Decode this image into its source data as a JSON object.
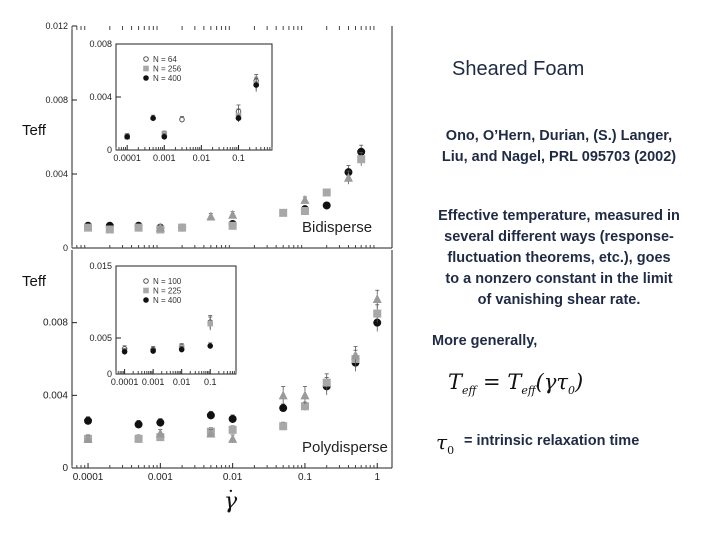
{
  "slide": {
    "title": "Sheared Foam",
    "citation_line1": "Ono, O’Hern, Durian, (S.) Langer,",
    "citation_line2": "Liu, and Nagel, PRL 095703 (2002)",
    "description_lines": [
      "Effective temperature, measured in",
      "several different ways (response-",
      "fluctuation theorems, etc.),  goes",
      "to a nonzero constant in the limit",
      "of vanishing shear rate."
    ],
    "more_generally": "More generally,",
    "formula_T": "T",
    "formula_sub": "eff",
    "formula_eq": "=",
    "formula_paren": "(γτ",
    "formula_sub0": "0",
    "formula_close": ")",
    "tau_symbol": "τ",
    "tau_sub": "0",
    "relaxation_text": "= intrinsic relaxation time",
    "teff_label_top": "Teff",
    "teff_label_bottom": "Teff",
    "xaxis_symbol": "γ",
    "xaxis_dot": "·"
  },
  "chart_data": [
    {
      "name": "top-main",
      "type": "scatter",
      "annotation": "Bidisperse",
      "ylabel": "Teff",
      "xscale": "log",
      "xlim": [
        6e-05,
        1.6
      ],
      "ylim": [
        0,
        0.012
      ],
      "yticks": [
        "0",
        "0.004",
        "0.008",
        "0.012"
      ],
      "series": [
        {
          "marker": "circle-filled-black",
          "points": [
            [
              0.0001,
              0.0012
            ],
            [
              0.0002,
              0.0012
            ],
            [
              0.0005,
              0.0012
            ],
            [
              0.001,
              0.0011
            ],
            [
              0.002,
              0.0011
            ],
            [
              0.01,
              0.0013
            ],
            [
              0.1,
              0.0021
            ],
            [
              0.2,
              0.0023
            ],
            [
              0.4,
              0.0041
            ],
            [
              0.6,
              0.0052
            ]
          ]
        },
        {
          "marker": "square-gray",
          "points": [
            [
              0.0001,
              0.0011
            ],
            [
              0.0002,
              0.001
            ],
            [
              0.0005,
              0.0011
            ],
            [
              0.001,
              0.001
            ],
            [
              0.002,
              0.0011
            ],
            [
              0.01,
              0.0012
            ],
            [
              0.05,
              0.0019
            ],
            [
              0.1,
              0.002
            ],
            [
              0.2,
              0.003
            ],
            [
              0.6,
              0.0048
            ]
          ]
        },
        {
          "marker": "triangle-gray",
          "points": [
            [
              0.001,
              0.0011
            ],
            [
              0.005,
              0.0017
            ],
            [
              0.01,
              0.0018
            ],
            [
              0.1,
              0.0026
            ],
            [
              0.4,
              0.0038
            ]
          ]
        }
      ]
    },
    {
      "name": "top-inset",
      "type": "scatter",
      "xscale": "log",
      "xlim": [
        5e-05,
        0.8
      ],
      "ylim": [
        0,
        0.008
      ],
      "xticks": [
        "0.0001",
        "0.001",
        "0.01",
        "0.1"
      ],
      "yticks": [
        "0",
        "0.004",
        "0.008"
      ],
      "legend": [
        {
          "marker": "circle-open",
          "label": "N = 64"
        },
        {
          "marker": "square-gray",
          "label": "N = 256"
        },
        {
          "marker": "circle-filled-black",
          "label": "N = 400"
        }
      ],
      "series": [
        {
          "marker": "circle-open",
          "points": [
            [
              0.003,
              0.0023
            ],
            [
              0.1,
              0.0029
            ],
            [
              0.3,
              0.0052
            ]
          ]
        },
        {
          "marker": "square-gray",
          "points": [
            [
              0.0001,
              0.001
            ],
            [
              0.001,
              0.0012
            ],
            [
              0.1,
              0.0026
            ],
            [
              0.3,
              0.005
            ]
          ]
        },
        {
          "marker": "circle-filled-black",
          "points": [
            [
              0.0001,
              0.001
            ],
            [
              0.0005,
              0.0024
            ],
            [
              0.001,
              0.001
            ],
            [
              0.1,
              0.0024
            ],
            [
              0.3,
              0.0049
            ]
          ]
        }
      ]
    },
    {
      "name": "bottom-main",
      "type": "scatter",
      "annotation": "Polydisperse",
      "ylabel": "Teff",
      "xscale": "log",
      "xlim": [
        6e-05,
        1.6
      ],
      "ylim": [
        0,
        0.012
      ],
      "xticks": [
        "0.0001",
        "0.001",
        "0.01",
        "0.1",
        "1"
      ],
      "yticks": [
        "0",
        "0.004",
        "0.008"
      ],
      "series": [
        {
          "marker": "circle-filled-black",
          "points": [
            [
              0.0001,
              0.0026
            ],
            [
              0.0005,
              0.0024
            ],
            [
              0.001,
              0.0025
            ],
            [
              0.005,
              0.0029
            ],
            [
              0.01,
              0.0027
            ],
            [
              0.05,
              0.0033
            ],
            [
              0.1,
              0.0034
            ],
            [
              0.2,
              0.0045
            ],
            [
              0.5,
              0.0058
            ],
            [
              1,
              0.008
            ]
          ]
        },
        {
          "marker": "square-gray",
          "points": [
            [
              0.0001,
              0.0016
            ],
            [
              0.0005,
              0.0016
            ],
            [
              0.001,
              0.0017
            ],
            [
              0.005,
              0.002
            ],
            [
              0.01,
              0.0021
            ],
            [
              0.05,
              0.0023
            ],
            [
              0.1,
              0.0034
            ],
            [
              0.2,
              0.0047
            ],
            [
              0.5,
              0.006
            ],
            [
              1,
              0.0085
            ]
          ]
        },
        {
          "marker": "triangle-gray",
          "points": [
            [
              0.0001,
              0.0016
            ],
            [
              0.001,
              0.0019
            ],
            [
              0.005,
              0.0019
            ],
            [
              0.01,
              0.0016
            ],
            [
              0.05,
              0.004
            ],
            [
              0.1,
              0.004
            ],
            [
              0.5,
              0.0062
            ],
            [
              1,
              0.0093
            ]
          ]
        }
      ]
    },
    {
      "name": "bottom-inset",
      "type": "scatter",
      "xscale": "log",
      "xlim": [
        5e-05,
        0.8
      ],
      "ylim": [
        0,
        0.015
      ],
      "xticks": [
        "0.0001",
        "0.001",
        "0.01",
        "0.1"
      ],
      "yticks": [
        "0",
        "0.005",
        "0.015"
      ],
      "legend": [
        {
          "marker": "circle-open",
          "label": "N = 100"
        },
        {
          "marker": "square-gray",
          "label": "N = 225"
        },
        {
          "marker": "circle-filled-black",
          "label": "N = 400"
        }
      ],
      "series": [
        {
          "marker": "circle-open",
          "points": [
            [
              0.0001,
              0.0035
            ],
            [
              0.001,
              0.0034
            ],
            [
              0.01,
              0.0038
            ],
            [
              0.1,
              0.0072
            ]
          ]
        },
        {
          "marker": "square-gray",
          "points": [
            [
              0.01,
              0.0037
            ],
            [
              0.1,
              0.007
            ]
          ]
        },
        {
          "marker": "circle-filled-black",
          "points": [
            [
              0.0001,
              0.0031
            ],
            [
              0.001,
              0.0032
            ],
            [
              0.01,
              0.0034
            ],
            [
              0.1,
              0.0039
            ]
          ]
        }
      ]
    }
  ]
}
